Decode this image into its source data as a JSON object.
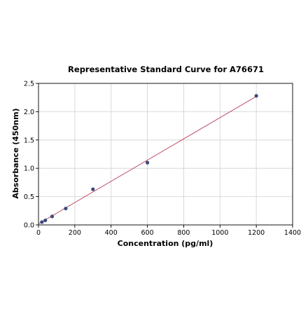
{
  "chart_data": {
    "type": "scatter",
    "title": "Representative Standard Curve for A76671",
    "xlabel": "Concentration (pg/ml)",
    "ylabel": "Absorbance (450nm)",
    "xlim": [
      0,
      1400
    ],
    "ylim": [
      0,
      2.5
    ],
    "xticks": [
      0,
      200,
      400,
      600,
      800,
      1000,
      1200,
      1400
    ],
    "yticks": [
      0.0,
      0.5,
      1.0,
      1.5,
      2.0,
      2.5
    ],
    "xtick_labels": [
      "0",
      "200",
      "400",
      "600",
      "800",
      "1000",
      "1200",
      "1400"
    ],
    "ytick_labels": [
      "0.0",
      "0.5",
      "1.0",
      "1.5",
      "2.0",
      "2.5"
    ],
    "grid": true,
    "series": [
      {
        "points": [
          {
            "x": 18.75,
            "y": 0.05
          },
          {
            "x": 37.5,
            "y": 0.08
          },
          {
            "x": 75,
            "y": 0.15
          },
          {
            "x": 150,
            "y": 0.29
          },
          {
            "x": 300,
            "y": 0.63
          },
          {
            "x": 600,
            "y": 1.1
          },
          {
            "x": 1200,
            "y": 2.28
          }
        ],
        "color": "#3a4a7a"
      }
    ],
    "fit_line": {
      "from": {
        "x": 0,
        "y": 0.02
      },
      "to": {
        "x": 1200,
        "y": 2.27
      },
      "color": "#c0506a"
    }
  }
}
